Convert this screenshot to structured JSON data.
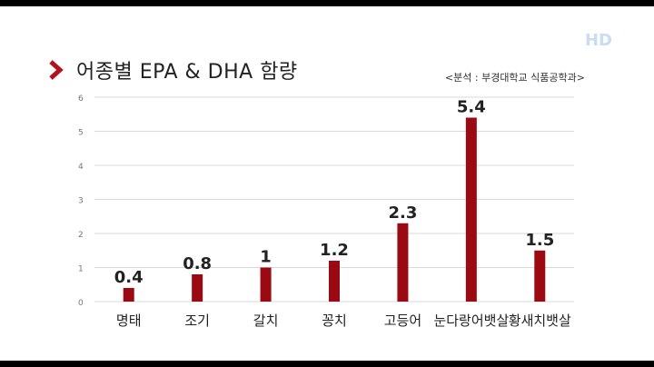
{
  "title": "어종별 EPA & DHA 함량",
  "source": "<분석 : 부경대학교 식품공학과>",
  "badge": "HD",
  "colors": {
    "bar": "#9b0a12",
    "grid": "#d9d9d9",
    "accent": "#b3121b"
  },
  "chart_data": {
    "type": "bar",
    "title": "어종별 EPA & DHA 함량",
    "xlabel": "",
    "ylabel": "",
    "ylim": [
      0,
      6
    ],
    "yticks": [
      "0",
      "1",
      "2",
      "3",
      "4",
      "5",
      "6"
    ],
    "grid": true,
    "categories": [
      "명태",
      "조기",
      "갈치",
      "꽁치",
      "고등어",
      "눈다랑어뱃살",
      "황새치뱃살"
    ],
    "values": [
      0.4,
      0.8,
      1,
      1.2,
      2.3,
      5.4,
      1.5
    ],
    "value_labels": [
      "0.4",
      "0.8",
      "1",
      "1.2",
      "2.3",
      "5.4",
      "1.5"
    ]
  }
}
